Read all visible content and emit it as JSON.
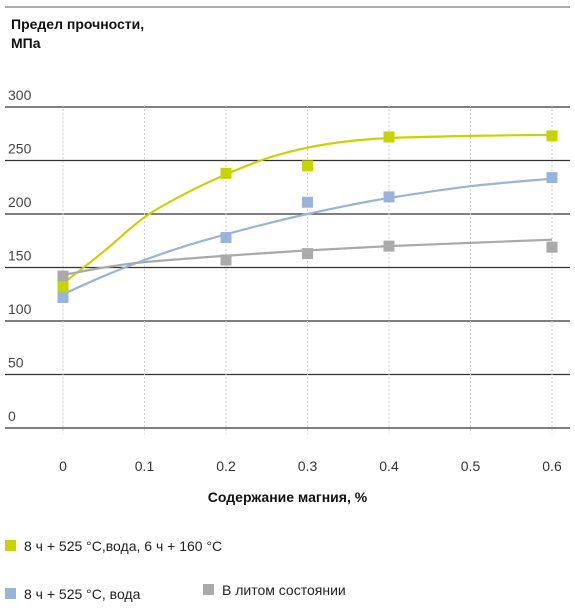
{
  "chart_data": {
    "type": "scatter",
    "ylabel": "Предел прочности, МПа",
    "ylabel_lines": [
      "Предел прочности,",
      "МПа"
    ],
    "xlabel": "Содержание магния, %",
    "xlim": [
      0,
      0.6
    ],
    "ylim": [
      0,
      300
    ],
    "x_ticks": [
      "0",
      "0.1",
      "0.2",
      "0.3",
      "0.4",
      "0.5",
      "0.6"
    ],
    "y_ticks": [
      "0",
      "50",
      "100",
      "150",
      "200",
      "250",
      "300"
    ],
    "grid": "horizontal",
    "series": [
      {
        "name": "8 ч + 525 °С,вода, 6 ч + 160 °С",
        "color": "#c8d400",
        "x": [
          0,
          0.2,
          0.3,
          0.4,
          0.6
        ],
        "y": [
          132,
          238,
          245,
          272,
          273
        ],
        "trend": [
          [
            0,
            135
          ],
          [
            0.05,
            165
          ],
          [
            0.1,
            197
          ],
          [
            0.15,
            219
          ],
          [
            0.2,
            237
          ],
          [
            0.25,
            252
          ],
          [
            0.3,
            262
          ],
          [
            0.35,
            268
          ],
          [
            0.4,
            271
          ],
          [
            0.5,
            273
          ],
          [
            0.6,
            274
          ]
        ]
      },
      {
        "name": "8 ч + 525 °С, вода",
        "color": "#98b4dc",
        "x": [
          0,
          0.2,
          0.3,
          0.4,
          0.6
        ],
        "y": [
          122,
          178,
          211,
          216,
          234
        ],
        "trend": [
          [
            0,
            125
          ],
          [
            0.05,
            142
          ],
          [
            0.1,
            157
          ],
          [
            0.15,
            170
          ],
          [
            0.2,
            181
          ],
          [
            0.25,
            191
          ],
          [
            0.3,
            200
          ],
          [
            0.35,
            208
          ],
          [
            0.4,
            215
          ],
          [
            0.5,
            226
          ],
          [
            0.6,
            233
          ]
        ]
      },
      {
        "name": "В литом состоянии",
        "color": "#aaaaaa",
        "x": [
          0,
          0.2,
          0.3,
          0.4,
          0.6
        ],
        "y": [
          142,
          157,
          163,
          170,
          169
        ],
        "trend": [
          [
            0,
            143
          ],
          [
            0.05,
            150
          ],
          [
            0.1,
            155
          ],
          [
            0.2,
            161
          ],
          [
            0.3,
            166
          ],
          [
            0.4,
            170
          ],
          [
            0.5,
            173
          ],
          [
            0.6,
            176
          ]
        ]
      }
    ]
  }
}
